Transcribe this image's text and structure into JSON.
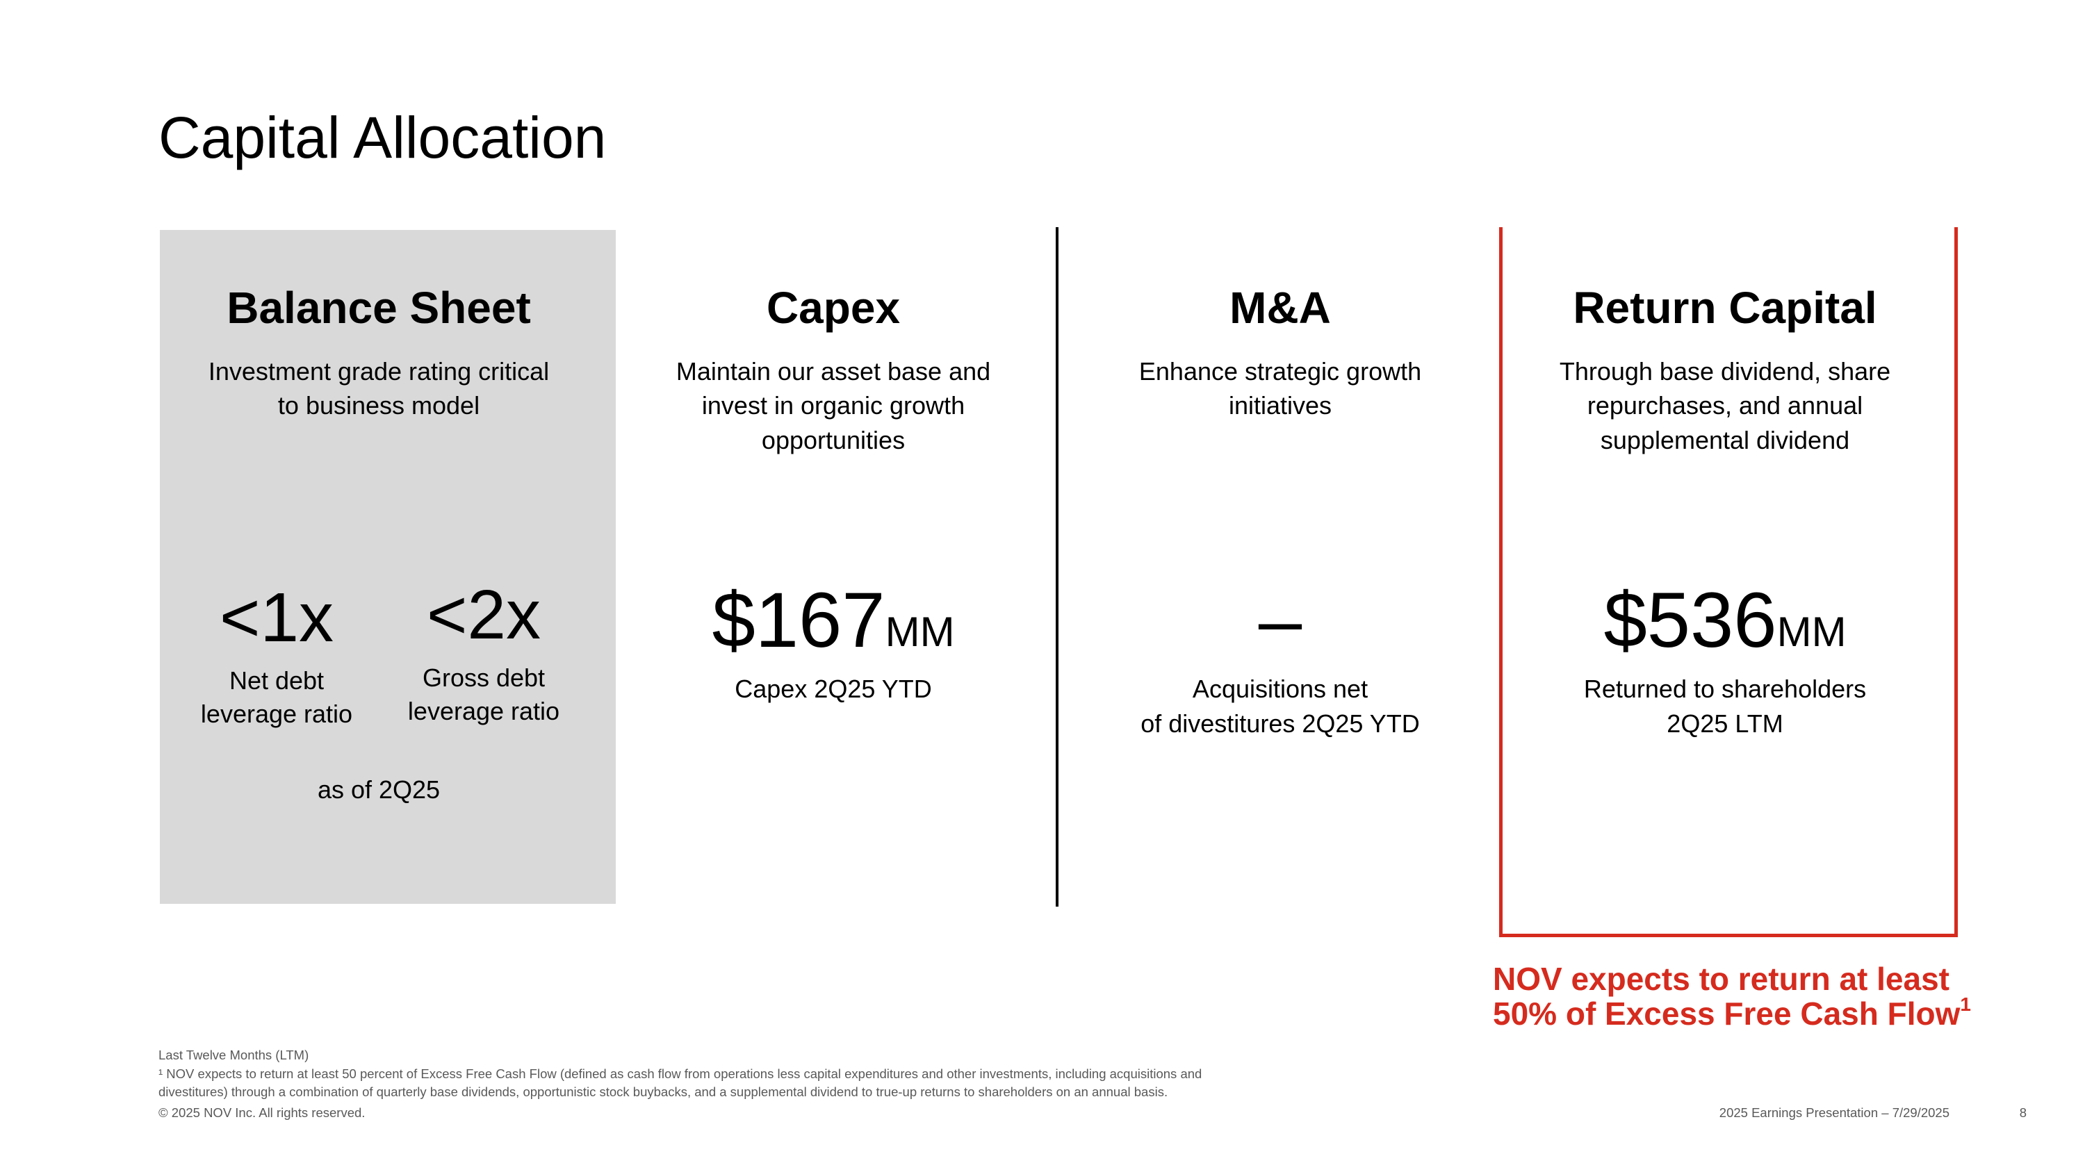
{
  "title": "Capital Allocation",
  "columns": [
    {
      "heading": "Balance Sheet",
      "description": [
        "Investment grade rating critical",
        "to business model"
      ],
      "metrics": [
        {
          "value": "<1x",
          "label": [
            "Net debt",
            "leverage ratio"
          ]
        },
        {
          "value": "<2x",
          "label": [
            "Gross debt",
            "leverage ratio"
          ]
        }
      ],
      "note": "as of 2Q25"
    },
    {
      "heading": "Capex",
      "description": [
        "Maintain our asset base and",
        "invest in organic growth",
        "opportunities"
      ],
      "metric": {
        "value": "$167",
        "unit": "MM",
        "label": [
          "Capex 2Q25 YTD"
        ]
      }
    },
    {
      "heading": "M&A",
      "description": [
        "Enhance strategic growth",
        "initiatives"
      ],
      "metric": {
        "value": "–",
        "label": [
          "Acquisitions net",
          "of divestitures 2Q25 YTD"
        ]
      }
    },
    {
      "heading": "Return Capital",
      "description": [
        "Through base dividend, share",
        "repurchases, and annual",
        "supplemental dividend"
      ],
      "metric": {
        "value": "$536",
        "unit": "MM",
        "label": [
          "Returned to shareholders",
          "2Q25 LTM"
        ]
      }
    }
  ],
  "callout": {
    "lines": [
      "NOV expects to return at least",
      "50% of Excess Free Cash Flow"
    ],
    "superscript": "1"
  },
  "footnotes": [
    "Last Twelve Months (LTM)",
    "¹ NOV expects to return at least 50 percent of Excess Free Cash Flow (defined as cash flow from operations less capital expenditures and other investments, including acquisitions and",
    "divestitures) through a combination of quarterly base dividends, opportunistic stock buybacks, and a supplemental dividend to true-up returns to shareholders on an annual basis."
  ],
  "footer": {
    "copyright": "© 2025 NOV Inc. All rights reserved.",
    "presentation": "2025 Earnings Presentation – 7/29/2025",
    "page": "8"
  }
}
